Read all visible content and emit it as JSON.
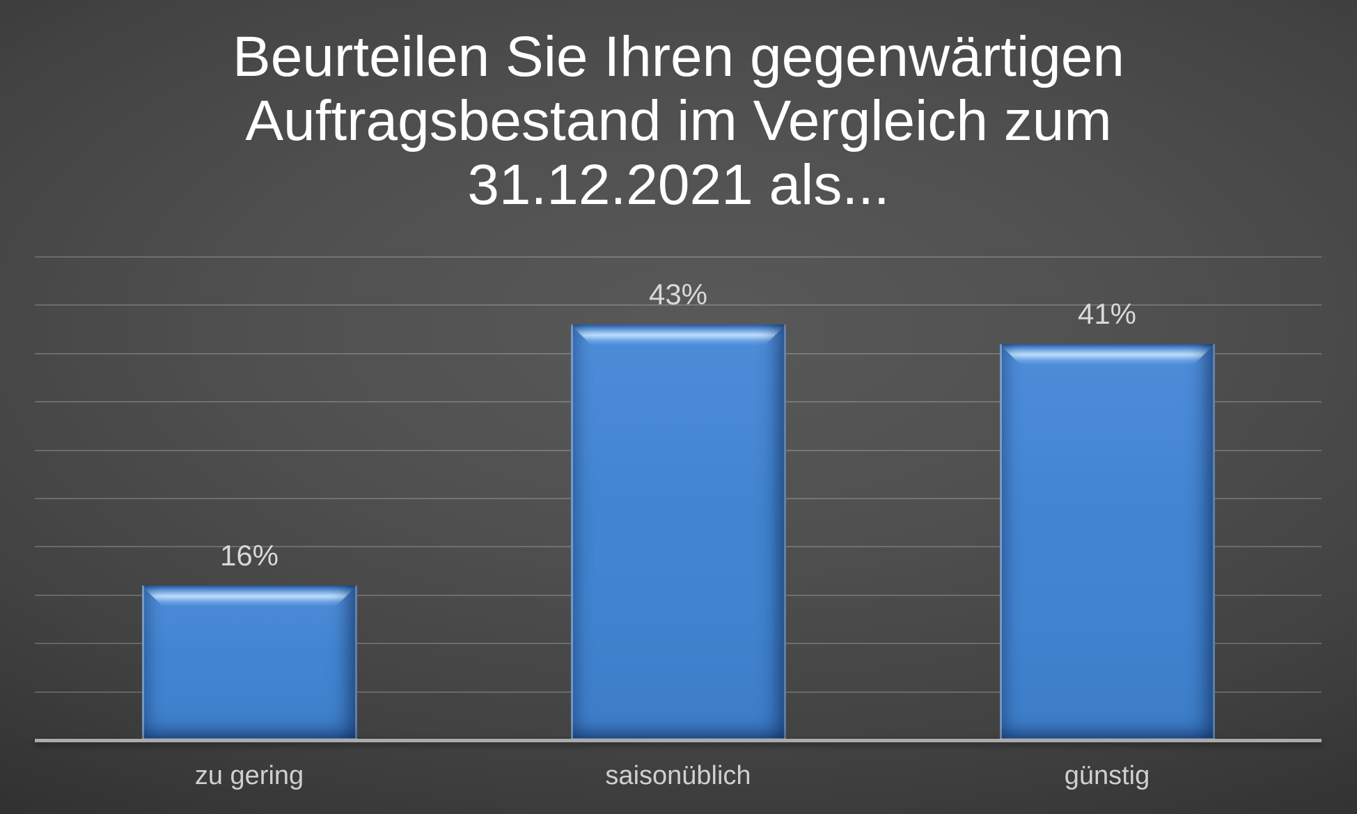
{
  "chart_data": {
    "type": "bar",
    "title": "Beurteilen Sie Ihren gegenwärtigen Auftragsbestand im Vergleich zum 31.12.2021 als...",
    "title_lines": [
      "Beurteilen Sie Ihren gegenwärtigen",
      "Auftragsbestand im Vergleich zum",
      "31.12.2021 als..."
    ],
    "categories": [
      "zu gering",
      "saisonüblich",
      "günstig"
    ],
    "values": [
      16,
      43,
      41
    ],
    "value_labels": [
      "16%",
      "43%",
      "41%"
    ],
    "xlabel": "",
    "ylabel": "",
    "ylim": [
      0,
      50
    ],
    "gridline_step": 5,
    "grid": true,
    "legend": false,
    "y_tick_labels_visible": false
  },
  "colors": {
    "background_center": "#595959",
    "background_edge": "#252525",
    "bar_fill": "#4183cf",
    "bar_bevel_highlight": "#bfe0fc",
    "bar_bevel_shadow": "#2d63a9",
    "title_text": "#ffffff",
    "value_label_text": "#d9d9d9",
    "category_label_text": "#d0d0d0",
    "gridline": "rgba(255,255,255,0.20)",
    "axis_line": "#ababab"
  }
}
